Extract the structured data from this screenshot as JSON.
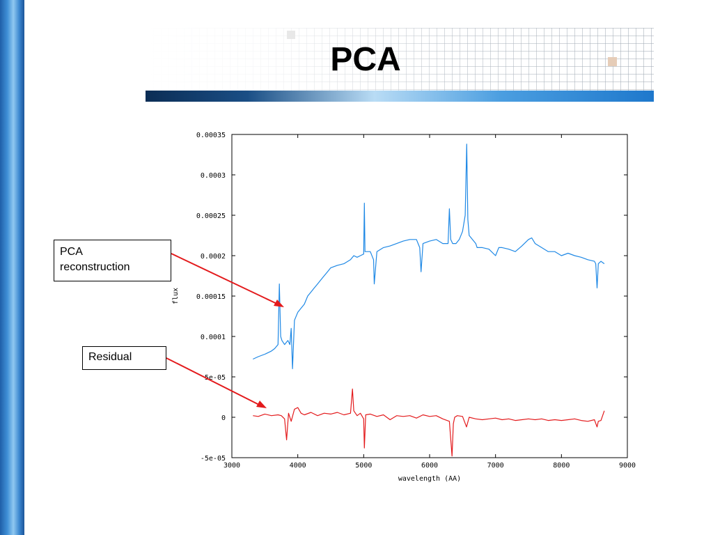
{
  "slide_title": "PCA",
  "annotations": {
    "pca_label": "PCA\nreconstruction",
    "residual_label": "Residual"
  },
  "colors": {
    "reconstruction": "#1e88e5",
    "residual": "#e31a1c",
    "arrow": "#e31a1c"
  },
  "chart_data": {
    "type": "line",
    "xlabel": "wavelength (AA)",
    "ylabel": "flux",
    "xlim": [
      3000,
      9000
    ],
    "ylim": [
      -5e-05,
      0.00035
    ],
    "x_ticks": [
      3000,
      4000,
      5000,
      6000,
      7000,
      8000,
      9000
    ],
    "x_tick_labels": [
      "3000",
      "4000",
      "5000",
      "6000",
      "7000",
      "8000",
      "9000"
    ],
    "y_ticks": [
      -5e-05,
      0,
      5e-05,
      0.0001,
      0.00015,
      0.0002,
      0.00025,
      0.0003,
      0.00035
    ],
    "y_tick_labels": [
      "-5e-05",
      "0",
      "5e-05",
      "0.0001",
      "0.00015",
      "0.0002",
      "0.00025",
      "0.0003",
      "0.00035"
    ],
    "grid": false,
    "series": [
      {
        "role": "reconstruction",
        "color": "#1e88e5",
        "x": [
          3320,
          3400,
          3500,
          3600,
          3650,
          3700,
          3720,
          3740,
          3760,
          3800,
          3850,
          3880,
          3900,
          3920,
          3950,
          4000,
          4050,
          4100,
          4150,
          4200,
          4250,
          4300,
          4350,
          4400,
          4450,
          4500,
          4600,
          4700,
          4800,
          4850,
          4900,
          4950,
          5000,
          5010,
          5020,
          5050,
          5100,
          5150,
          5160,
          5200,
          5300,
          5400,
          5500,
          5600,
          5700,
          5800,
          5850,
          5870,
          5900,
          6000,
          6100,
          6200,
          6280,
          6300,
          6320,
          6350,
          6400,
          6450,
          6500,
          6540,
          6563,
          6580,
          6600,
          6650,
          6700,
          6720,
          6800,
          6900,
          7000,
          7050,
          7100,
          7200,
          7300,
          7400,
          7500,
          7550,
          7600,
          7700,
          7800,
          7900,
          8000,
          8100,
          8200,
          8300,
          8400,
          8500,
          8520,
          8540,
          8560,
          8600,
          8650
        ],
        "y": [
          7.2e-05,
          7.5e-05,
          7.8e-05,
          8.2e-05,
          8.5e-05,
          9e-05,
          0.000165,
          0.0001,
          9.5e-05,
          9e-05,
          9.5e-05,
          9e-05,
          0.00011,
          6e-05,
          0.00012,
          0.00013,
          0.000135,
          0.00014,
          0.00015,
          0.000155,
          0.00016,
          0.000165,
          0.00017,
          0.000175,
          0.00018,
          0.000185,
          0.000188,
          0.00019,
          0.000195,
          0.0002,
          0.000198,
          0.0002,
          0.000202,
          0.000265,
          0.000205,
          0.000205,
          0.000205,
          0.000195,
          0.000165,
          0.000205,
          0.00021,
          0.000212,
          0.000215,
          0.000218,
          0.00022,
          0.00022,
          0.00021,
          0.00018,
          0.000215,
          0.000218,
          0.00022,
          0.000215,
          0.000215,
          0.000258,
          0.00022,
          0.000215,
          0.000215,
          0.00022,
          0.00023,
          0.00025,
          0.000338,
          0.000245,
          0.000225,
          0.00022,
          0.000215,
          0.00021,
          0.00021,
          0.000208,
          0.0002,
          0.00021,
          0.00021,
          0.000208,
          0.000205,
          0.000212,
          0.00022,
          0.000222,
          0.000215,
          0.00021,
          0.000205,
          0.000205,
          0.0002,
          0.000203,
          0.0002,
          0.000198,
          0.000195,
          0.000193,
          0.00019,
          0.00016,
          0.00019,
          0.000193,
          0.00019
        ]
      },
      {
        "role": "residual",
        "color": "#e31a1c",
        "x": [
          3320,
          3400,
          3500,
          3600,
          3700,
          3750,
          3800,
          3830,
          3860,
          3900,
          3950,
          4000,
          4050,
          4100,
          4200,
          4300,
          4400,
          4500,
          4600,
          4700,
          4800,
          4830,
          4850,
          4900,
          4950,
          5000,
          5010,
          5030,
          5100,
          5200,
          5300,
          5400,
          5500,
          5600,
          5700,
          5800,
          5900,
          6000,
          6100,
          6200,
          6300,
          6340,
          6360,
          6380,
          6420,
          6500,
          6560,
          6600,
          6700,
          6800,
          6900,
          7000,
          7100,
          7200,
          7300,
          7400,
          7500,
          7600,
          7700,
          7800,
          7900,
          8000,
          8100,
          8200,
          8300,
          8400,
          8500,
          8540,
          8560,
          8600,
          8650
        ],
        "y": [
          2e-06,
          1e-06,
          4e-06,
          2e-06,
          3e-06,
          2e-06,
          -2e-06,
          -2.8e-05,
          5e-06,
          -5e-06,
          1e-05,
          1.2e-05,
          5e-06,
          3e-06,
          6e-06,
          2e-06,
          5e-06,
          4e-06,
          6e-06,
          3e-06,
          5e-06,
          3.5e-05,
          8e-06,
          2e-06,
          5e-06,
          -2e-06,
          -3.8e-05,
          3e-06,
          4e-06,
          1e-06,
          3e-06,
          -3e-06,
          2e-06,
          1e-06,
          2e-06,
          -1e-06,
          3e-06,
          1e-06,
          2e-06,
          -2e-06,
          -5e-06,
          -4.8e-05,
          -8e-06,
          0.0,
          2e-06,
          1e-06,
          -1.2e-05,
          0.0,
          -2e-06,
          -3e-06,
          -2e-06,
          -1e-06,
          -3e-06,
          -2e-06,
          -4e-06,
          -3e-06,
          -2e-06,
          -3e-06,
          -2e-06,
          -4e-06,
          -3e-06,
          -4e-06,
          -3e-06,
          -2e-06,
          -4e-06,
          -5e-06,
          -3e-06,
          -1.2e-05,
          -5e-06,
          -4e-06,
          8e-06
        ]
      }
    ]
  }
}
